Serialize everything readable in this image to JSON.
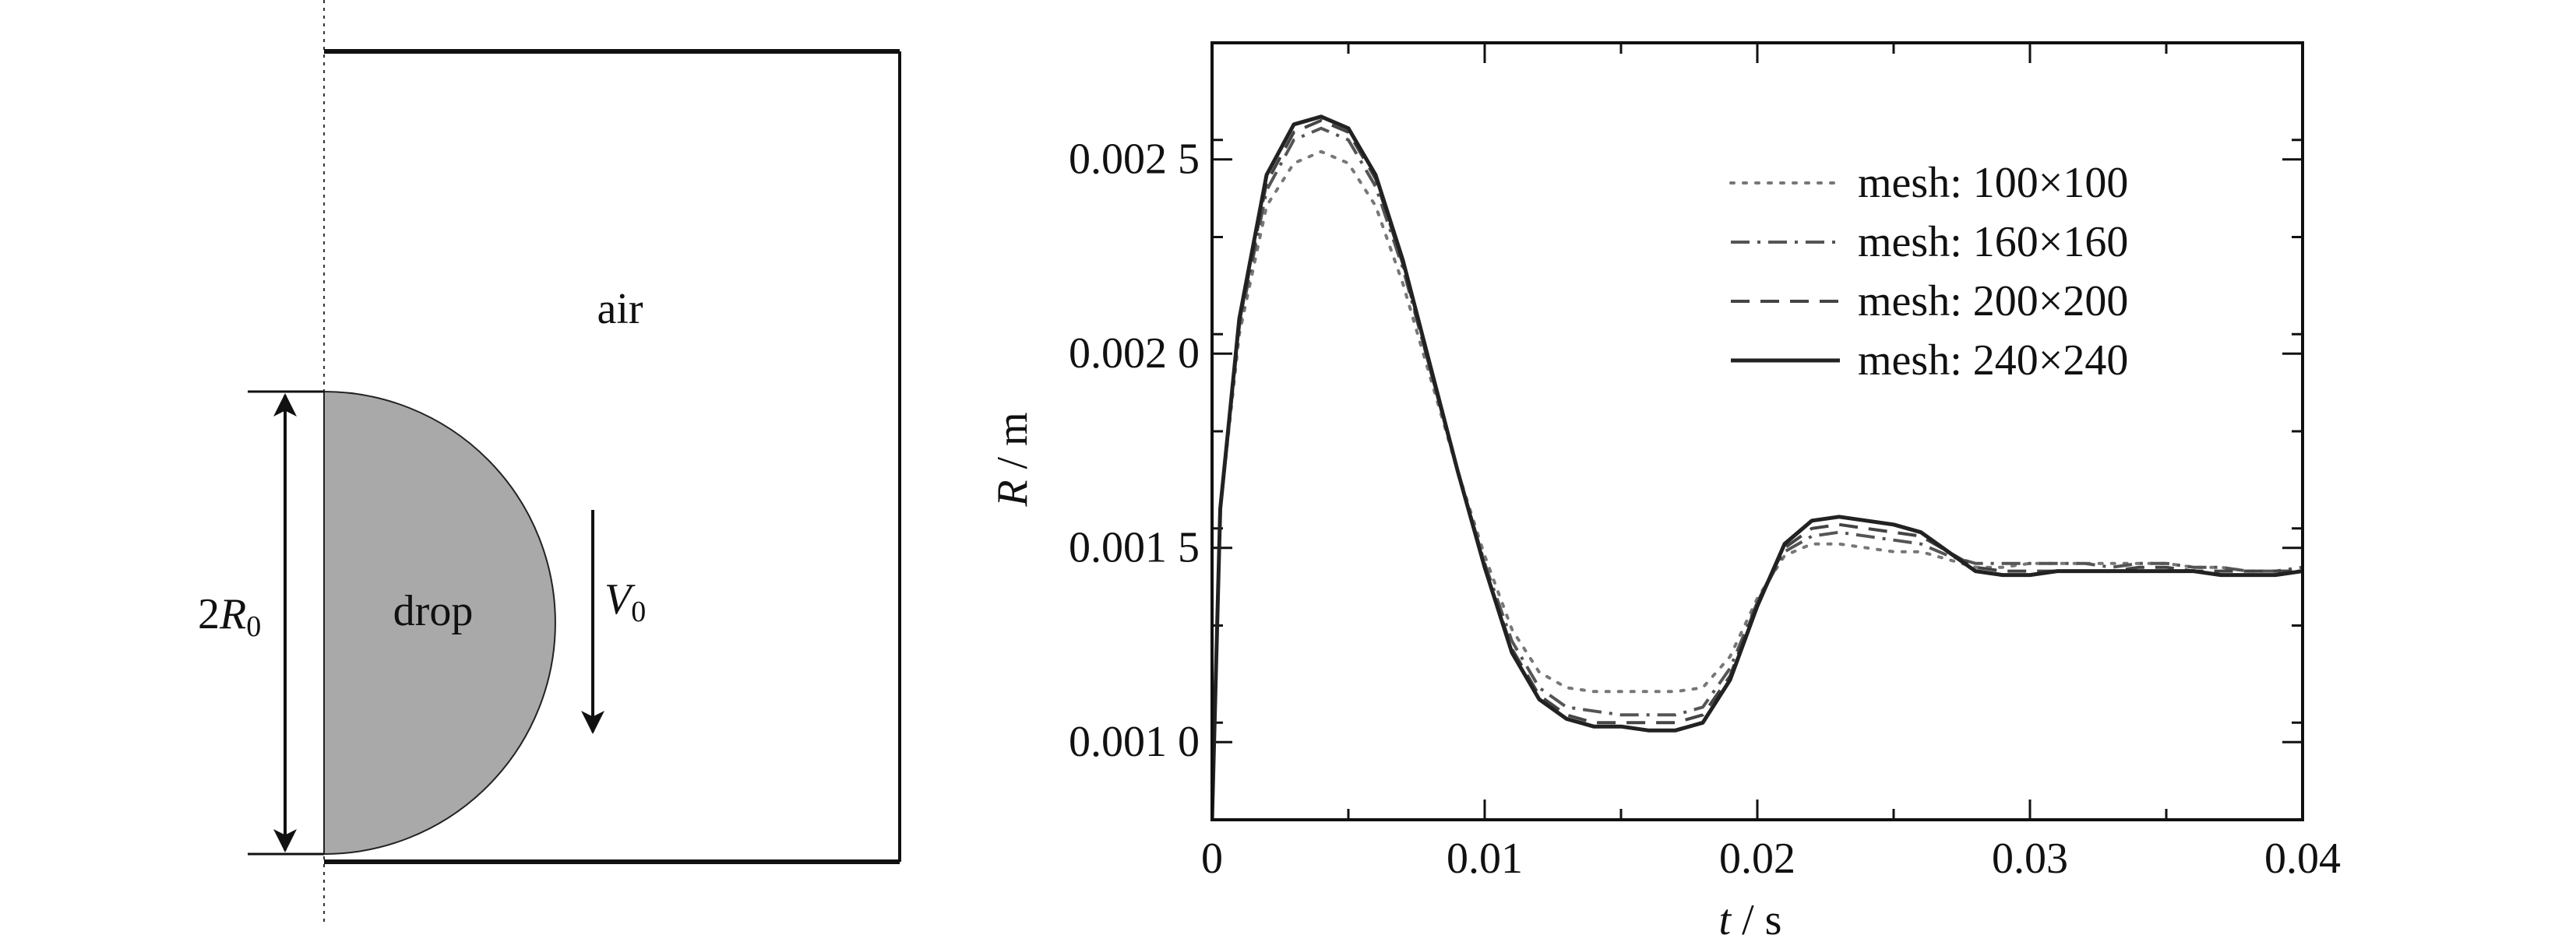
{
  "diagram": {
    "air_label": "air",
    "drop_label": "drop",
    "diameter_label": {
      "main": "2",
      "var": "R",
      "sub": "0"
    },
    "velocity_label": {
      "var": "V",
      "sub": "0"
    }
  },
  "chart_data": {
    "type": "line",
    "title": "",
    "xlabel": {
      "var": "t",
      "unit": " / s"
    },
    "ylabel": {
      "var": "R",
      "unit": " / m"
    },
    "xlim": [
      0,
      0.04
    ],
    "ylim": [
      0.0008,
      0.0028
    ],
    "x_ticks": [
      {
        "value": 0,
        "label": "0"
      },
      {
        "value": 0.01,
        "label": "0.01"
      },
      {
        "value": 0.02,
        "label": "0.02"
      },
      {
        "value": 0.03,
        "label": "0.03"
      },
      {
        "value": 0.04,
        "label": "0.04"
      }
    ],
    "y_ticks": [
      {
        "value": 0.001,
        "label": "0.001 0"
      },
      {
        "value": 0.0015,
        "label": "0.001 5"
      },
      {
        "value": 0.002,
        "label": "0.002 0"
      },
      {
        "value": 0.0025,
        "label": "0.002 5"
      }
    ],
    "legend_position": "top-right",
    "series": [
      {
        "name": "mesh: 100×100",
        "style": "dotted",
        "color": "#777777",
        "points": [
          [
            0,
            0.0008
          ],
          [
            0.0003,
            0.0016
          ],
          [
            0.001,
            0.00205
          ],
          [
            0.002,
            0.00238
          ],
          [
            0.003,
            0.00249
          ],
          [
            0.004,
            0.00252
          ],
          [
            0.005,
            0.00249
          ],
          [
            0.006,
            0.00238
          ],
          [
            0.007,
            0.00218
          ],
          [
            0.008,
            0.00194
          ],
          [
            0.009,
            0.0017
          ],
          [
            0.01,
            0.00148
          ],
          [
            0.011,
            0.00129
          ],
          [
            0.012,
            0.00118
          ],
          [
            0.013,
            0.00114
          ],
          [
            0.014,
            0.00113
          ],
          [
            0.015,
            0.00113
          ],
          [
            0.016,
            0.00113
          ],
          [
            0.017,
            0.00113
          ],
          [
            0.018,
            0.00114
          ],
          [
            0.019,
            0.00122
          ],
          [
            0.02,
            0.00137
          ],
          [
            0.021,
            0.00148
          ],
          [
            0.022,
            0.00151
          ],
          [
            0.023,
            0.00151
          ],
          [
            0.024,
            0.0015
          ],
          [
            0.025,
            0.00149
          ],
          [
            0.026,
            0.00149
          ],
          [
            0.027,
            0.00147
          ],
          [
            0.028,
            0.00145
          ],
          [
            0.029,
            0.00145
          ],
          [
            0.03,
            0.00146
          ],
          [
            0.031,
            0.00146
          ],
          [
            0.032,
            0.00146
          ],
          [
            0.033,
            0.00146
          ],
          [
            0.034,
            0.00146
          ],
          [
            0.035,
            0.00146
          ],
          [
            0.036,
            0.00145
          ],
          [
            0.037,
            0.00145
          ],
          [
            0.038,
            0.00144
          ],
          [
            0.039,
            0.00144
          ],
          [
            0.04,
            0.00144
          ]
        ]
      },
      {
        "name": "mesh: 160×160",
        "style": "dashdot",
        "color": "#555555",
        "points": [
          [
            0,
            0.0008
          ],
          [
            0.0003,
            0.0016
          ],
          [
            0.001,
            0.00207
          ],
          [
            0.002,
            0.00242
          ],
          [
            0.003,
            0.00255
          ],
          [
            0.004,
            0.00258
          ],
          [
            0.005,
            0.00255
          ],
          [
            0.006,
            0.00243
          ],
          [
            0.007,
            0.00222
          ],
          [
            0.008,
            0.00196
          ],
          [
            0.009,
            0.0017
          ],
          [
            0.01,
            0.00146
          ],
          [
            0.011,
            0.00126
          ],
          [
            0.012,
            0.00114
          ],
          [
            0.013,
            0.00109
          ],
          [
            0.014,
            0.00108
          ],
          [
            0.015,
            0.00107
          ],
          [
            0.016,
            0.00107
          ],
          [
            0.017,
            0.00107
          ],
          [
            0.018,
            0.00109
          ],
          [
            0.019,
            0.00119
          ],
          [
            0.02,
            0.00136
          ],
          [
            0.021,
            0.00149
          ],
          [
            0.022,
            0.00153
          ],
          [
            0.023,
            0.00154
          ],
          [
            0.024,
            0.00153
          ],
          [
            0.025,
            0.00152
          ],
          [
            0.026,
            0.00151
          ],
          [
            0.027,
            0.00148
          ],
          [
            0.028,
            0.00146
          ],
          [
            0.029,
            0.00146
          ],
          [
            0.03,
            0.00146
          ],
          [
            0.031,
            0.00146
          ],
          [
            0.032,
            0.00146
          ],
          [
            0.033,
            0.00145
          ],
          [
            0.034,
            0.00146
          ],
          [
            0.035,
            0.00146
          ],
          [
            0.036,
            0.00145
          ],
          [
            0.037,
            0.00145
          ],
          [
            0.038,
            0.00144
          ],
          [
            0.039,
            0.00144
          ],
          [
            0.04,
            0.00145
          ]
        ]
      },
      {
        "name": "mesh: 200×200",
        "style": "dashed",
        "color": "#444444",
        "points": [
          [
            0,
            0.0008
          ],
          [
            0.0003,
            0.0016
          ],
          [
            0.001,
            0.00208
          ],
          [
            0.002,
            0.00244
          ],
          [
            0.003,
            0.00257
          ],
          [
            0.004,
            0.0026
          ],
          [
            0.005,
            0.00257
          ],
          [
            0.006,
            0.00245
          ],
          [
            0.007,
            0.00223
          ],
          [
            0.008,
            0.00196
          ],
          [
            0.009,
            0.0017
          ],
          [
            0.01,
            0.00145
          ],
          [
            0.011,
            0.00124
          ],
          [
            0.012,
            0.00112
          ],
          [
            0.013,
            0.00107
          ],
          [
            0.014,
            0.00105
          ],
          [
            0.015,
            0.00105
          ],
          [
            0.016,
            0.00105
          ],
          [
            0.017,
            0.00105
          ],
          [
            0.018,
            0.00107
          ],
          [
            0.019,
            0.00117
          ],
          [
            0.02,
            0.00136
          ],
          [
            0.021,
            0.0015
          ],
          [
            0.022,
            0.00155
          ],
          [
            0.023,
            0.00156
          ],
          [
            0.024,
            0.00155
          ],
          [
            0.025,
            0.00154
          ],
          [
            0.026,
            0.00153
          ],
          [
            0.027,
            0.00149
          ],
          [
            0.028,
            0.00145
          ],
          [
            0.029,
            0.00144
          ],
          [
            0.03,
            0.00144
          ],
          [
            0.031,
            0.00144
          ],
          [
            0.032,
            0.00144
          ],
          [
            0.033,
            0.00144
          ],
          [
            0.034,
            0.00145
          ],
          [
            0.035,
            0.00145
          ],
          [
            0.036,
            0.00144
          ],
          [
            0.037,
            0.00144
          ],
          [
            0.038,
            0.00144
          ],
          [
            0.039,
            0.00144
          ],
          [
            0.04,
            0.00144
          ]
        ]
      },
      {
        "name": "mesh: 240×240",
        "style": "solid",
        "color": "#222222",
        "points": [
          [
            0,
            0.0008
          ],
          [
            0.0003,
            0.0016
          ],
          [
            0.001,
            0.00209
          ],
          [
            0.002,
            0.00246
          ],
          [
            0.003,
            0.00259
          ],
          [
            0.004,
            0.00261
          ],
          [
            0.005,
            0.00258
          ],
          [
            0.006,
            0.00246
          ],
          [
            0.007,
            0.00224
          ],
          [
            0.008,
            0.00197
          ],
          [
            0.009,
            0.0017
          ],
          [
            0.01,
            0.00145
          ],
          [
            0.011,
            0.00123
          ],
          [
            0.012,
            0.00111
          ],
          [
            0.013,
            0.00106
          ],
          [
            0.014,
            0.00104
          ],
          [
            0.015,
            0.00104
          ],
          [
            0.016,
            0.00103
          ],
          [
            0.017,
            0.00103
          ],
          [
            0.018,
            0.00105
          ],
          [
            0.019,
            0.00116
          ],
          [
            0.02,
            0.00135
          ],
          [
            0.021,
            0.00151
          ],
          [
            0.022,
            0.00157
          ],
          [
            0.023,
            0.00158
          ],
          [
            0.024,
            0.00157
          ],
          [
            0.025,
            0.00156
          ],
          [
            0.026,
            0.00154
          ],
          [
            0.027,
            0.00149
          ],
          [
            0.028,
            0.00144
          ],
          [
            0.029,
            0.00143
          ],
          [
            0.03,
            0.00143
          ],
          [
            0.031,
            0.00144
          ],
          [
            0.032,
            0.00144
          ],
          [
            0.033,
            0.00144
          ],
          [
            0.034,
            0.00144
          ],
          [
            0.035,
            0.00144
          ],
          [
            0.036,
            0.00144
          ],
          [
            0.037,
            0.00143
          ],
          [
            0.038,
            0.00143
          ],
          [
            0.039,
            0.00143
          ],
          [
            0.04,
            0.00144
          ]
        ]
      }
    ]
  }
}
